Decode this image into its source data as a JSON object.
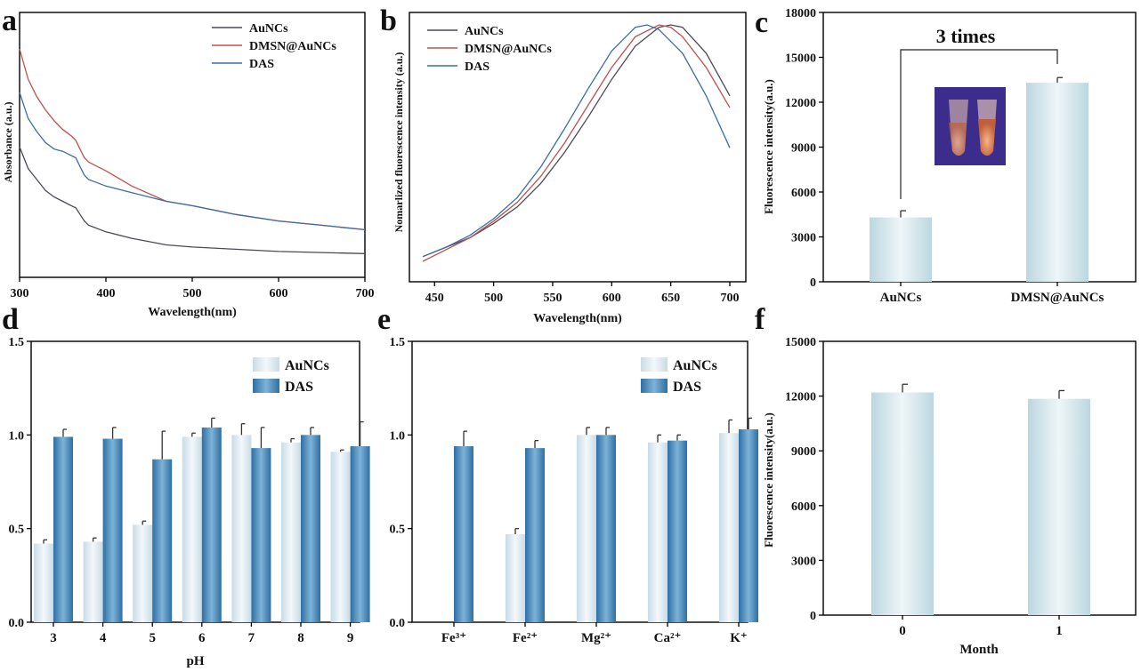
{
  "colors": {
    "aunc_line": "#4a4a55",
    "dmsn_line": "#c0504d",
    "das_line": "#3a6ea5",
    "bar_light_edge": "#c8dbe6",
    "bar_light_mid": "#f3f8fb",
    "bar_dark_edge": "#2f6fa3",
    "bar_dark_mid": "#7eb3d8",
    "bar_cyan_edge": "#bcd7e0",
    "bar_cyan_mid": "#eef6f8",
    "inset_bg": "#3c2d8c",
    "inset_glow": "#f2a070"
  },
  "chart_data": [
    {
      "panel": "a",
      "type": "line",
      "title": "",
      "xlabel": "Wavelength(nm)",
      "ylabel": "Absorbance (a.u.)",
      "xlim": [
        300,
        700
      ],
      "ylim": [
        0,
        1
      ],
      "xticks": [
        "300",
        "400",
        "500",
        "600",
        "700"
      ],
      "legend": [
        "AuNCs",
        "DMSN@AuNCs",
        "DAS"
      ],
      "legend_position": "top-right",
      "series": [
        {
          "name": "AuNCs",
          "color_key": "aunc_line",
          "x": [
            300,
            310,
            320,
            330,
            340,
            350,
            360,
            365,
            370,
            375,
            380,
            400,
            430,
            470,
            500,
            550,
            600,
            650,
            700
          ],
          "y": [
            0.55,
            0.45,
            0.4,
            0.35,
            0.32,
            0.3,
            0.28,
            0.27,
            0.24,
            0.21,
            0.19,
            0.16,
            0.13,
            0.1,
            0.09,
            0.08,
            0.07,
            0.065,
            0.06
          ]
        },
        {
          "name": "DMSN@AuNCs",
          "color_key": "dmsn_line",
          "x": [
            300,
            310,
            320,
            330,
            340,
            350,
            360,
            365,
            370,
            375,
            380,
            400,
            430,
            470,
            500,
            550,
            600,
            650,
            700
          ],
          "y": [
            1.0,
            0.86,
            0.78,
            0.72,
            0.67,
            0.63,
            0.6,
            0.58,
            0.54,
            0.5,
            0.48,
            0.44,
            0.37,
            0.3,
            0.28,
            0.24,
            0.21,
            0.19,
            0.17
          ]
        },
        {
          "name": "DAS",
          "color_key": "das_line",
          "x": [
            300,
            310,
            320,
            330,
            340,
            350,
            360,
            365,
            370,
            375,
            380,
            400,
            430,
            470,
            500,
            550,
            600,
            650,
            700
          ],
          "y": [
            0.8,
            0.68,
            0.62,
            0.57,
            0.54,
            0.53,
            0.51,
            0.5,
            0.46,
            0.42,
            0.4,
            0.37,
            0.34,
            0.3,
            0.28,
            0.24,
            0.21,
            0.19,
            0.17
          ]
        }
      ]
    },
    {
      "panel": "b",
      "type": "line",
      "title": "",
      "xlabel": "Wavelength(nm)",
      "ylabel": "Nomarlized fluorescence intensity (a.u.)",
      "xlim": [
        440,
        700
      ],
      "ylim": [
        0,
        1
      ],
      "xticks": [
        "450",
        "500",
        "550",
        "600",
        "650",
        "700"
      ],
      "legend": [
        "AuNCs",
        "DMSN@AuNCs",
        "DAS"
      ],
      "legend_position": "top-left",
      "series": [
        {
          "name": "AuNCs",
          "color_key": "aunc_line",
          "x": [
            440,
            460,
            480,
            500,
            520,
            540,
            560,
            580,
            600,
            620,
            640,
            650,
            660,
            680,
            700
          ],
          "y": [
            0.02,
            0.06,
            0.1,
            0.16,
            0.23,
            0.33,
            0.46,
            0.61,
            0.77,
            0.91,
            0.99,
            1.0,
            0.99,
            0.88,
            0.7
          ]
        },
        {
          "name": "DMSN@AuNCs",
          "color_key": "dmsn_line",
          "x": [
            440,
            460,
            480,
            500,
            520,
            540,
            560,
            580,
            600,
            620,
            640,
            650,
            660,
            680,
            700
          ],
          "y": [
            0.0,
            0.05,
            0.1,
            0.17,
            0.25,
            0.36,
            0.5,
            0.66,
            0.82,
            0.95,
            1.0,
            0.99,
            0.95,
            0.82,
            0.65
          ]
        },
        {
          "name": "DAS",
          "color_key": "das_line",
          "x": [
            440,
            460,
            480,
            500,
            520,
            540,
            560,
            580,
            600,
            620,
            630,
            640,
            660,
            680,
            700
          ],
          "y": [
            0.02,
            0.06,
            0.11,
            0.18,
            0.27,
            0.4,
            0.56,
            0.73,
            0.89,
            0.99,
            1.0,
            0.98,
            0.88,
            0.7,
            0.48
          ]
        }
      ]
    },
    {
      "panel": "c",
      "type": "bar",
      "title": "",
      "xlabel": "",
      "ylabel": "Fluorescence intensity(a.u.)",
      "ylim": [
        0,
        18000
      ],
      "yticks": [
        "0",
        "3000",
        "6000",
        "9000",
        "12000",
        "15000",
        "18000"
      ],
      "categories": [
        "AuNCs",
        "DMSN@AuNCs"
      ],
      "values": [
        4300,
        13300
      ],
      "errors": [
        450,
        350
      ],
      "annotation": "3 times",
      "has_inset_photo": true
    },
    {
      "panel": "d",
      "type": "bar",
      "title": "",
      "xlabel": "pH",
      "ylabel": "",
      "ylim": [
        0,
        1.5
      ],
      "yticks": [
        "0.0",
        "0.5",
        "1.0",
        "1.5"
      ],
      "categories": [
        "3",
        "4",
        "5",
        "6",
        "7",
        "8",
        "9"
      ],
      "legend_position": "top-right",
      "series": [
        {
          "name": "AuNCs",
          "values": [
            0.42,
            0.43,
            0.52,
            0.99,
            1.0,
            0.96,
            0.91
          ],
          "errors": [
            0.02,
            0.02,
            0.02,
            0.02,
            0.06,
            0.02,
            0.01
          ]
        },
        {
          "name": "DAS",
          "values": [
            0.99,
            0.98,
            0.87,
            1.04,
            0.93,
            1.0,
            0.94
          ],
          "errors": [
            0.04,
            0.06,
            0.15,
            0.05,
            0.11,
            0.04,
            0.13
          ]
        }
      ]
    },
    {
      "panel": "e",
      "type": "bar",
      "title": "",
      "xlabel": "",
      "ylabel": "",
      "ylim": [
        0,
        1.5
      ],
      "yticks": [
        "0.0",
        "0.5",
        "1.0",
        "1.5"
      ],
      "categories": [
        "Fe³⁺",
        "Fe²⁺",
        "Mg²⁺",
        "Ca²⁺",
        "K⁺"
      ],
      "legend_position": "top-right",
      "series": [
        {
          "name": "AuNCs",
          "values": [
            0.0,
            0.47,
            1.0,
            0.96,
            1.01
          ],
          "errors": [
            0.0,
            0.03,
            0.04,
            0.04,
            0.07
          ]
        },
        {
          "name": "DAS",
          "values": [
            0.94,
            0.93,
            1.0,
            0.97,
            1.03
          ],
          "errors": [
            0.08,
            0.04,
            0.04,
            0.03,
            0.06
          ]
        }
      ]
    },
    {
      "panel": "f",
      "type": "bar",
      "title": "",
      "xlabel": "Month",
      "ylabel": "Fluorescence intensity(a.u.)",
      "ylim": [
        0,
        15000
      ],
      "yticks": [
        "0",
        "3000",
        "6000",
        "9000",
        "12000",
        "15000"
      ],
      "categories": [
        "0",
        "1"
      ],
      "values": [
        12200,
        11850
      ],
      "errors": [
        450,
        450
      ]
    }
  ],
  "panel_labels": [
    "a",
    "b",
    "c",
    "d",
    "e",
    "f"
  ],
  "ylabel_fragments": {
    "abs": "Absorbance (a.u.)",
    "norm": "Nomarlized fluorescence intensity (a.u.)",
    "fluo": "Fluorescence intensity(a.u.)"
  }
}
